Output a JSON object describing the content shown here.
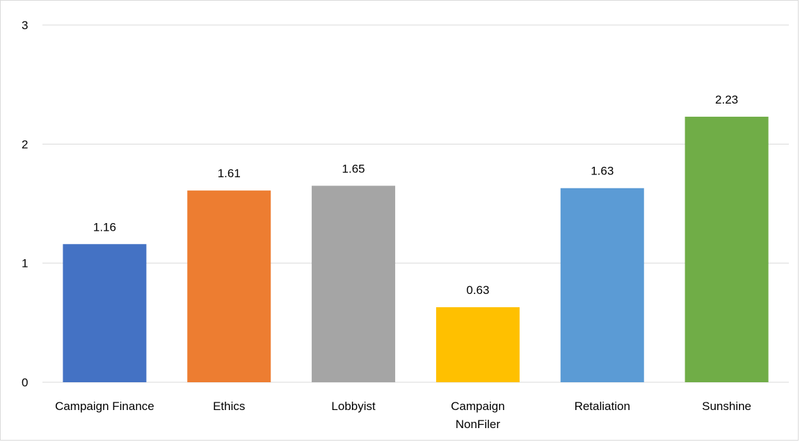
{
  "chart_data": {
    "type": "bar",
    "title": "",
    "xlabel": "",
    "ylabel": "",
    "categories": [
      [
        "Campaign Finance"
      ],
      [
        "Ethics"
      ],
      [
        "Lobbyist"
      ],
      [
        "Campaign",
        "NonFiler"
      ],
      [
        "Retaliation"
      ],
      [
        "Sunshine"
      ]
    ],
    "values": [
      1.16,
      1.61,
      1.65,
      0.63,
      1.63,
      2.23
    ],
    "value_labels": [
      "1.16",
      "1.61",
      "1.65",
      "0.63",
      "1.63",
      "2.23"
    ],
    "colors": [
      "#4472c4",
      "#ed7d31",
      "#a5a5a5",
      "#ffc000",
      "#5b9bd5",
      "#70ad47"
    ],
    "ylim": [
      0,
      3
    ],
    "yticks": [
      0,
      1,
      2,
      3
    ],
    "grid": true,
    "legend": "none"
  }
}
